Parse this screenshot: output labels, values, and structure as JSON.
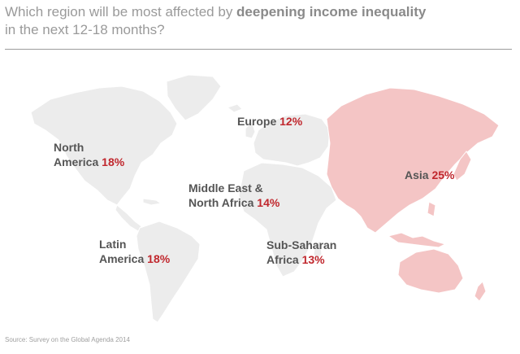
{
  "title": {
    "prefix": "Which region will be most affected by ",
    "emphasis": "deepening income inequality",
    "line2": "in the next 12-18 months?"
  },
  "regions": [
    {
      "id": "north-america",
      "line1": "North",
      "line2": "America",
      "value": "18%"
    },
    {
      "id": "latin-america",
      "line1": "Latin",
      "line2": "America",
      "value": "18%"
    },
    {
      "id": "europe",
      "line1": "Europe",
      "line2": "",
      "value": "12%"
    },
    {
      "id": "mena",
      "line1": "Middle East &",
      "line2": "North Africa",
      "value": "14%"
    },
    {
      "id": "ssa",
      "line1": "Sub-Saharan",
      "line2": "Africa",
      "value": "13%"
    },
    {
      "id": "asia",
      "line1": "Asia",
      "line2": "",
      "value": "25%"
    }
  ],
  "source": "Source: Survey on the Global Agenda 2014",
  "colors": {
    "land": "#ececec",
    "highlight": "#f4c5c5",
    "value_text": "#c0272d",
    "label_text": "#555555"
  }
}
